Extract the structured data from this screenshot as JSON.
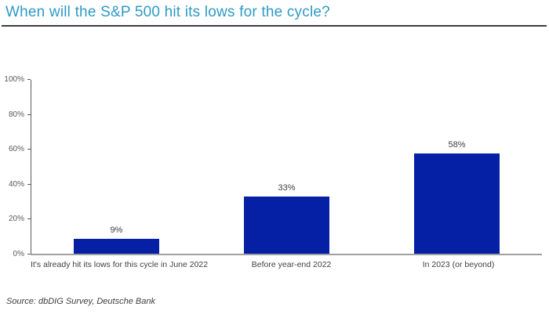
{
  "title": "When will the S&P 500 hit its lows for the cycle?",
  "source": "Source: dbDIG Survey, Deutsche Bank",
  "colors": {
    "title": "#2E9AC7",
    "title_rule": "#3A3A45",
    "bar": "#0520A5",
    "axis": "#595959",
    "tick_label": "#595959",
    "value_label": "#3D3D3D",
    "category_label": "#404040",
    "baseline": "#A0A0A0",
    "source": "#404040",
    "background": "#FFFFFF"
  },
  "chart_data": {
    "type": "bar",
    "title": "When will the S&P 500 hit its lows for the cycle?",
    "categories": [
      "It's already hit its lows for this cycle in June 2022",
      "Before year-end 2022",
      "In 2023 (or beyond)"
    ],
    "values": [
      9,
      33,
      58
    ],
    "value_labels": [
      "9%",
      "33%",
      "58%"
    ],
    "xlabel": "",
    "ylabel": "",
    "ylim": [
      0,
      100
    ],
    "ytick_step": 20,
    "yticks": [
      "0%",
      "20%",
      "40%",
      "60%",
      "80%",
      "100%"
    ],
    "grid": false,
    "legend": "none",
    "bar_color": "#0520A5",
    "source": "Source: dbDIG Survey, Deutsche Bank"
  }
}
